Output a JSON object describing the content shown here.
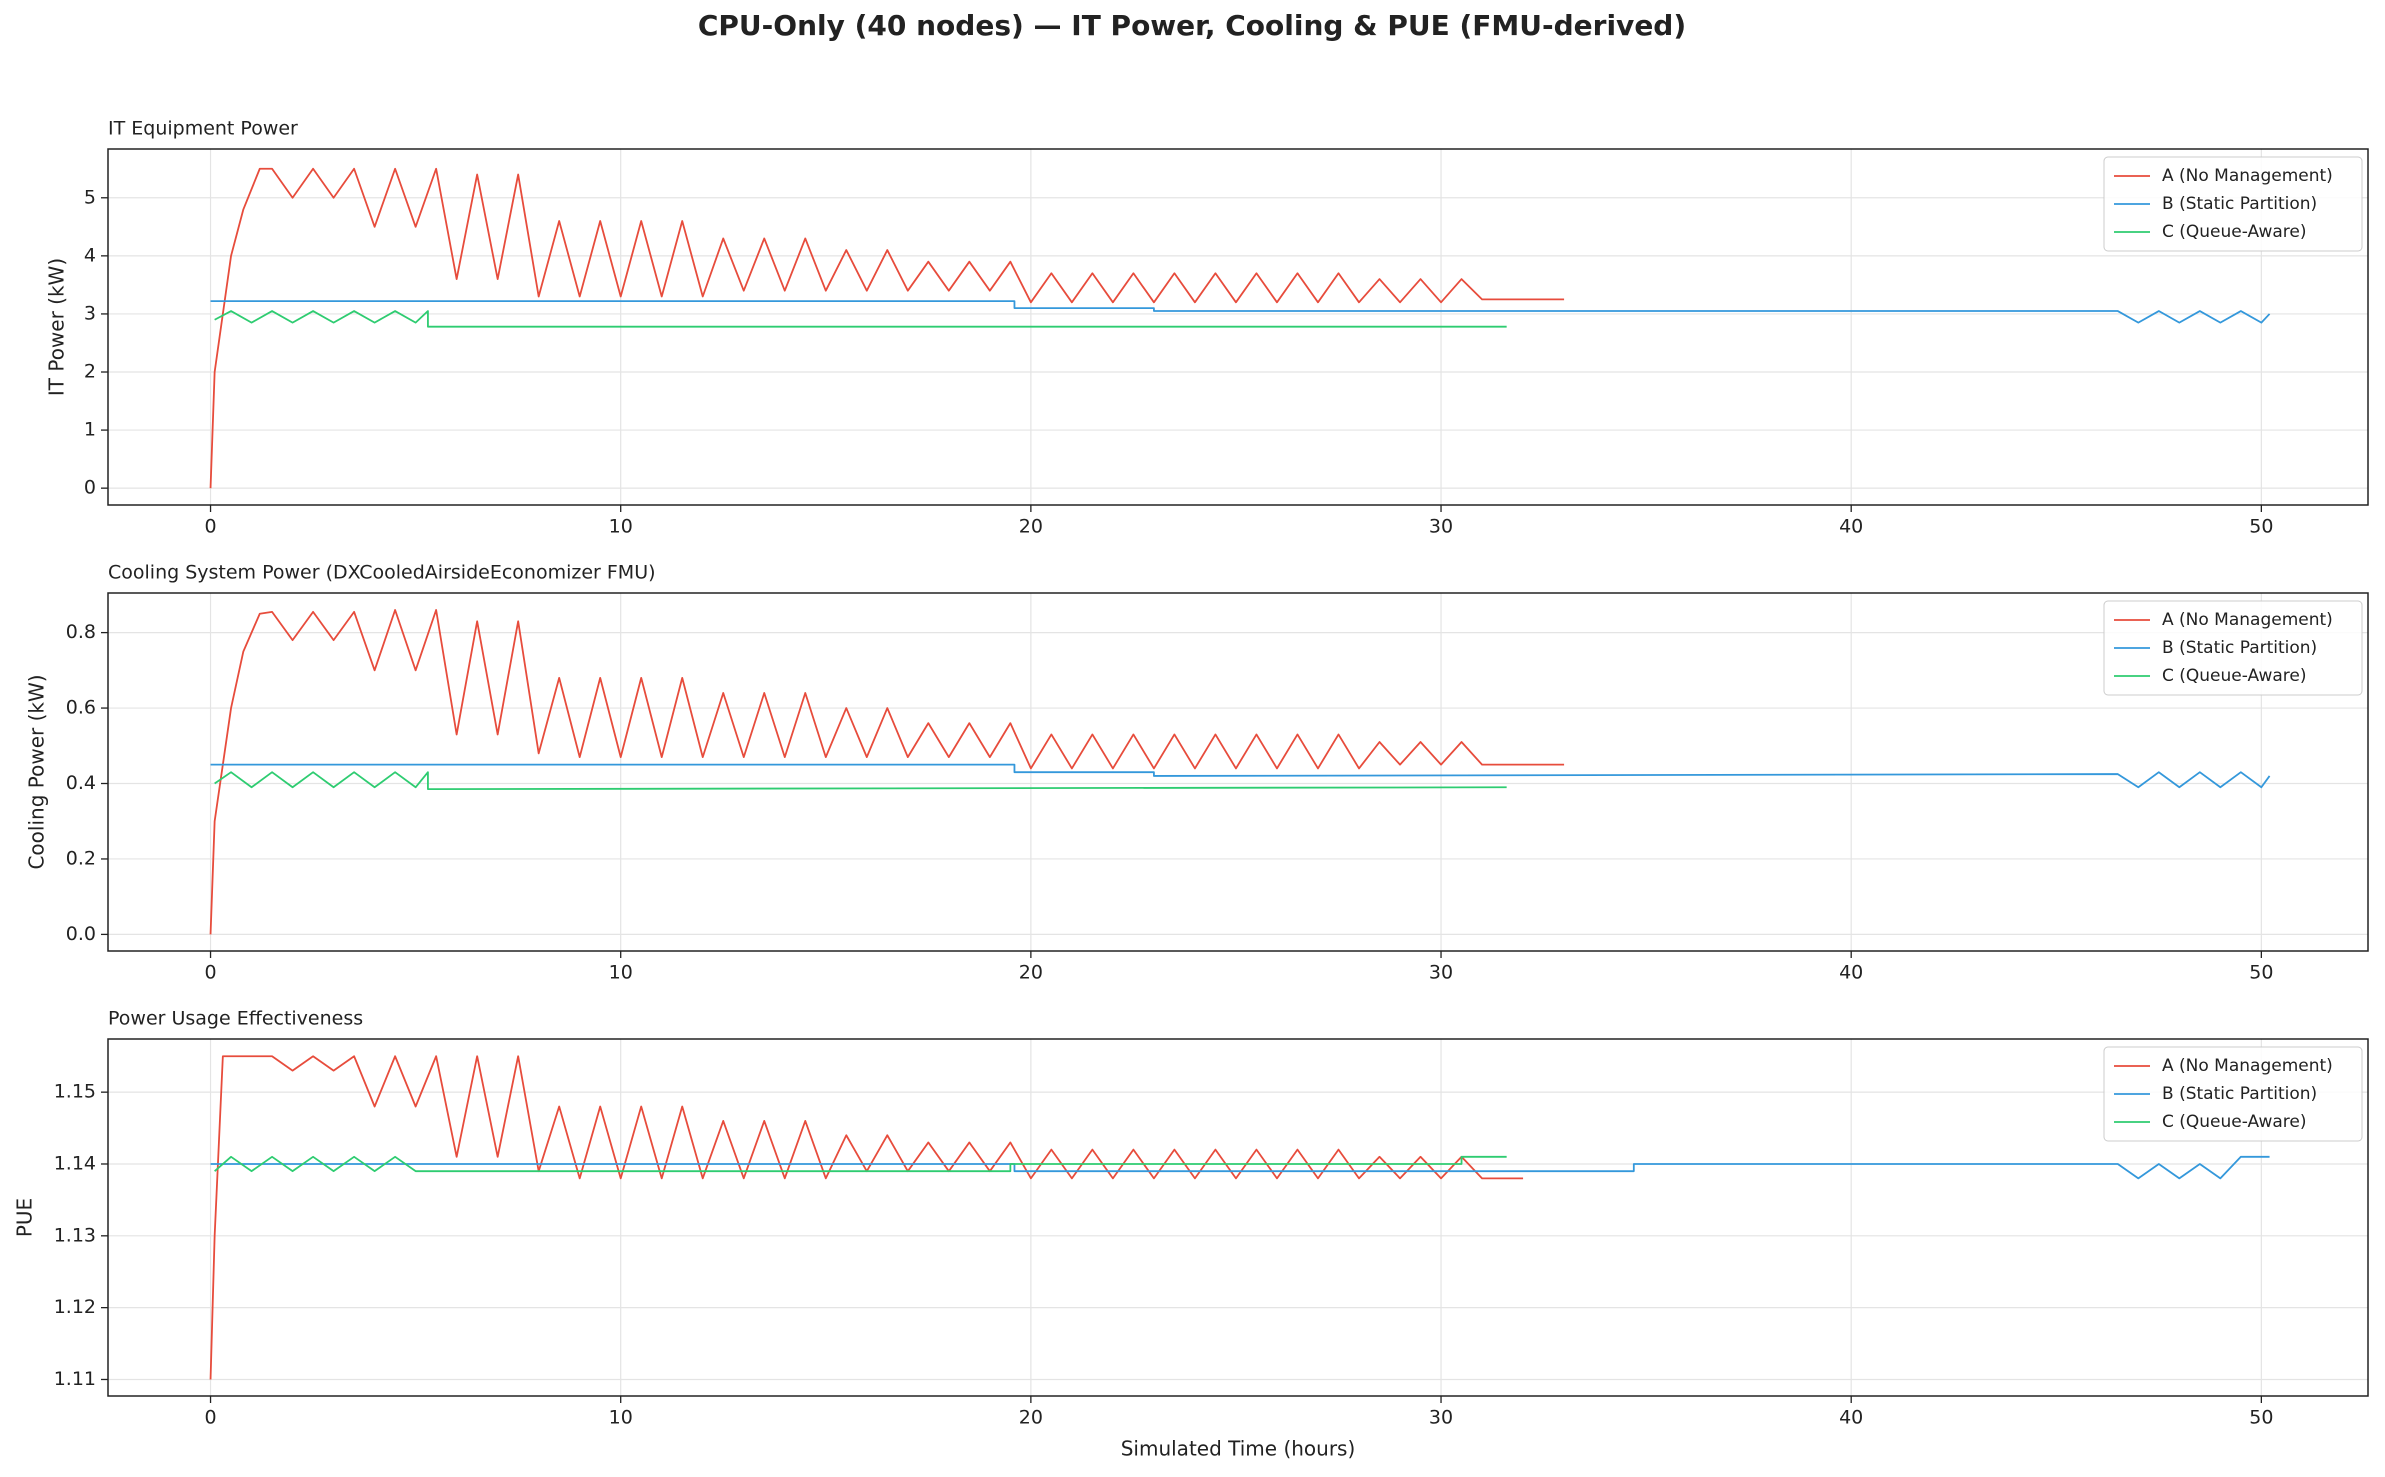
{
  "figure_title": "CPU-Only (40 nodes) — IT Power, Cooling & PUE (FMU-derived)",
  "chart_data": [
    {
      "type": "line",
      "title": "IT Equipment Power",
      "ylabel": "IT Power (kW)",
      "xlim": [
        -2.5,
        52.6
      ],
      "xticks": [
        0,
        10,
        20,
        30,
        40,
        50
      ],
      "ylim": [
        -0.29,
        5.84
      ],
      "yticks": [
        0,
        1,
        2,
        3,
        4,
        5
      ],
      "grid": true,
      "legend": "upper right",
      "series": [
        {
          "name": "A (No Management)",
          "color": "#e74c3c",
          "x": [
            0,
            0.1,
            0.3,
            0.5,
            0.8,
            1.2,
            1.5,
            2,
            2.5,
            3,
            3.5,
            4,
            4.5,
            5,
            5.5,
            6,
            6.5,
            7,
            7.5,
            8,
            8.5,
            9,
            9.5,
            10,
            10.5,
            11,
            11.5,
            12,
            12.5,
            13,
            13.5,
            14,
            14.5,
            15,
            15.5,
            16,
            16.5,
            17,
            17.5,
            18,
            18.5,
            19,
            19.5,
            20,
            20.5,
            21,
            21.5,
            22,
            22.5,
            23,
            23.5,
            24,
            24.5,
            25,
            25.5,
            26,
            26.5,
            27,
            27.5,
            28,
            28.5,
            29,
            29.5,
            30,
            30.5,
            31,
            33
          ],
          "values": [
            0,
            2,
            3,
            4,
            4.8,
            5.5,
            5.5,
            5.0,
            5.5,
            5.0,
            5.5,
            4.5,
            5.5,
            4.5,
            5.5,
            3.6,
            5.4,
            3.6,
            5.4,
            3.3,
            4.6,
            3.3,
            4.6,
            3.3,
            4.6,
            3.3,
            4.6,
            3.3,
            4.3,
            3.4,
            4.3,
            3.4,
            4.3,
            3.4,
            4.1,
            3.4,
            4.1,
            3.4,
            3.9,
            3.4,
            3.9,
            3.4,
            3.9,
            3.2,
            3.7,
            3.2,
            3.7,
            3.2,
            3.7,
            3.2,
            3.7,
            3.2,
            3.7,
            3.2,
            3.7,
            3.2,
            3.7,
            3.2,
            3.7,
            3.2,
            3.6,
            3.2,
            3.6,
            3.2,
            3.6,
            3.25,
            3.25
          ]
        },
        {
          "name": "B (Static Partition)",
          "color": "#3498db",
          "x": [
            0,
            19.6,
            19.6,
            23,
            23,
            46.5,
            47,
            47.5,
            48,
            48.5,
            49,
            49.5,
            50,
            50.2
          ],
          "values": [
            3.22,
            3.22,
            3.1,
            3.1,
            3.05,
            3.05,
            2.85,
            3.05,
            2.85,
            3.05,
            2.85,
            3.05,
            2.85,
            3.0
          ]
        },
        {
          "name": "C (Queue-Aware)",
          "color": "#2ecc71",
          "x": [
            0.1,
            0.5,
            1,
            1.5,
            2,
            2.5,
            3,
            3.5,
            4,
            4.5,
            5,
            5.3,
            5.3,
            31.6
          ],
          "values": [
            2.9,
            3.05,
            2.85,
            3.05,
            2.85,
            3.05,
            2.85,
            3.05,
            2.85,
            3.05,
            2.85,
            3.05,
            2.78,
            2.78
          ]
        }
      ]
    },
    {
      "type": "line",
      "title": "Cooling System Power (DXCooledAirsideEconomizer FMU)",
      "ylabel": "Cooling Power (kW)",
      "xlim": [
        -2.5,
        52.6
      ],
      "xticks": [
        0,
        10,
        20,
        30,
        40,
        50
      ],
      "ylim": [
        -0.044,
        0.905
      ],
      "yticks": [
        {
          "value": 0,
          "label": "0.0"
        },
        0.2,
        0.4,
        0.6,
        0.8
      ],
      "grid": true,
      "legend": "upper right",
      "series": [
        {
          "name": "A (No Management)",
          "color": "#e74c3c",
          "x": [
            0,
            0.1,
            0.3,
            0.5,
            0.8,
            1.2,
            1.5,
            2,
            2.5,
            3,
            3.5,
            4,
            4.5,
            5,
            5.5,
            6,
            6.5,
            7,
            7.5,
            8,
            8.5,
            9,
            9.5,
            10,
            10.5,
            11,
            11.5,
            12,
            12.5,
            13,
            13.5,
            14,
            14.5,
            15,
            15.5,
            16,
            16.5,
            17,
            17.5,
            18,
            18.5,
            19,
            19.5,
            20,
            20.5,
            21,
            21.5,
            22,
            22.5,
            23,
            23.5,
            24,
            24.5,
            25,
            25.5,
            26,
            26.5,
            27,
            27.5,
            28,
            28.5,
            29,
            29.5,
            30,
            30.5,
            31,
            33
          ],
          "values": [
            0,
            0.3,
            0.45,
            0.6,
            0.75,
            0.85,
            0.855,
            0.78,
            0.855,
            0.78,
            0.855,
            0.7,
            0.86,
            0.7,
            0.86,
            0.53,
            0.83,
            0.53,
            0.83,
            0.48,
            0.68,
            0.47,
            0.68,
            0.47,
            0.68,
            0.47,
            0.68,
            0.47,
            0.64,
            0.47,
            0.64,
            0.47,
            0.64,
            0.47,
            0.6,
            0.47,
            0.6,
            0.47,
            0.56,
            0.47,
            0.56,
            0.47,
            0.56,
            0.44,
            0.53,
            0.44,
            0.53,
            0.44,
            0.53,
            0.44,
            0.53,
            0.44,
            0.53,
            0.44,
            0.53,
            0.44,
            0.53,
            0.44,
            0.53,
            0.44,
            0.51,
            0.45,
            0.51,
            0.45,
            0.51,
            0.45,
            0.45
          ]
        },
        {
          "name": "B (Static Partition)",
          "color": "#3498db",
          "x": [
            0,
            19.6,
            19.6,
            23,
            23,
            46.5,
            47,
            47.5,
            48,
            48.5,
            49,
            49.5,
            50,
            50.2
          ],
          "values": [
            0.45,
            0.45,
            0.43,
            0.43,
            0.42,
            0.425,
            0.39,
            0.43,
            0.39,
            0.43,
            0.39,
            0.43,
            0.39,
            0.42
          ]
        },
        {
          "name": "C (Queue-Aware)",
          "color": "#2ecc71",
          "x": [
            0.1,
            0.5,
            1,
            1.5,
            2,
            2.5,
            3,
            3.5,
            4,
            4.5,
            5,
            5.3,
            5.3,
            31.6
          ],
          "values": [
            0.4,
            0.43,
            0.39,
            0.43,
            0.39,
            0.43,
            0.39,
            0.43,
            0.39,
            0.43,
            0.39,
            0.43,
            0.385,
            0.39
          ]
        }
      ]
    },
    {
      "type": "line",
      "title": "Power Usage Effectiveness",
      "ylabel": "PUE",
      "xlabel": "Simulated Time (hours)",
      "xlim": [
        -2.5,
        52.6
      ],
      "xticks": [
        0,
        10,
        20,
        30,
        40,
        50
      ],
      "ylim": [
        1.1077,
        1.1574
      ],
      "yticks": [
        1.11,
        1.12,
        1.13,
        1.14,
        1.15
      ],
      "grid": true,
      "legend": "upper right",
      "series": [
        {
          "name": "A (No Management)",
          "color": "#e74c3c",
          "x": [
            0,
            0.1,
            0.3,
            0.5,
            0.8,
            1.2,
            1.5,
            2,
            2.5,
            3,
            3.5,
            4,
            4.5,
            5,
            5.5,
            6,
            6.5,
            7,
            7.5,
            8,
            8.5,
            9,
            9.5,
            10,
            10.5,
            11,
            11.5,
            12,
            12.5,
            13,
            13.5,
            14,
            14.5,
            15,
            15.5,
            16,
            16.5,
            17,
            17.5,
            18,
            18.5,
            19,
            19.5,
            20,
            20.5,
            21,
            21.5,
            22,
            22.5,
            23,
            23.5,
            24,
            24.5,
            25,
            25.5,
            26,
            26.5,
            27,
            27.5,
            28,
            28.5,
            29,
            29.5,
            30,
            30.5,
            31,
            32
          ],
          "values": [
            1.11,
            1.13,
            1.155,
            1.155,
            1.155,
            1.155,
            1.155,
            1.153,
            1.155,
            1.153,
            1.155,
            1.148,
            1.155,
            1.148,
            1.155,
            1.141,
            1.155,
            1.141,
            1.155,
            1.139,
            1.148,
            1.138,
            1.148,
            1.138,
            1.148,
            1.138,
            1.148,
            1.138,
            1.146,
            1.138,
            1.146,
            1.138,
            1.146,
            1.138,
            1.144,
            1.139,
            1.144,
            1.139,
            1.143,
            1.139,
            1.143,
            1.139,
            1.143,
            1.138,
            1.142,
            1.138,
            1.142,
            1.138,
            1.142,
            1.138,
            1.142,
            1.138,
            1.142,
            1.138,
            1.142,
            1.138,
            1.142,
            1.138,
            1.142,
            1.138,
            1.141,
            1.138,
            1.141,
            1.138,
            1.141,
            1.138,
            1.138
          ]
        },
        {
          "name": "B (Static Partition)",
          "color": "#3498db",
          "x": [
            0,
            19.6,
            19.6,
            34.7,
            34.7,
            46.5,
            47,
            47.5,
            48,
            48.5,
            49,
            49.5,
            50.2
          ],
          "values": [
            1.14,
            1.14,
            1.139,
            1.139,
            1.14,
            1.14,
            1.138,
            1.14,
            1.138,
            1.14,
            1.138,
            1.141,
            1.141
          ]
        },
        {
          "name": "C (Queue-Aware)",
          "color": "#2ecc71",
          "x": [
            0.1,
            0.5,
            1,
            1.5,
            2,
            2.5,
            3,
            3.5,
            4,
            4.5,
            5,
            5.3,
            19.5,
            19.5,
            30.5,
            30.5,
            31.6
          ],
          "values": [
            1.139,
            1.141,
            1.139,
            1.141,
            1.139,
            1.141,
            1.139,
            1.141,
            1.139,
            1.141,
            1.139,
            1.139,
            1.139,
            1.14,
            1.14,
            1.141,
            1.141
          ]
        }
      ]
    }
  ]
}
